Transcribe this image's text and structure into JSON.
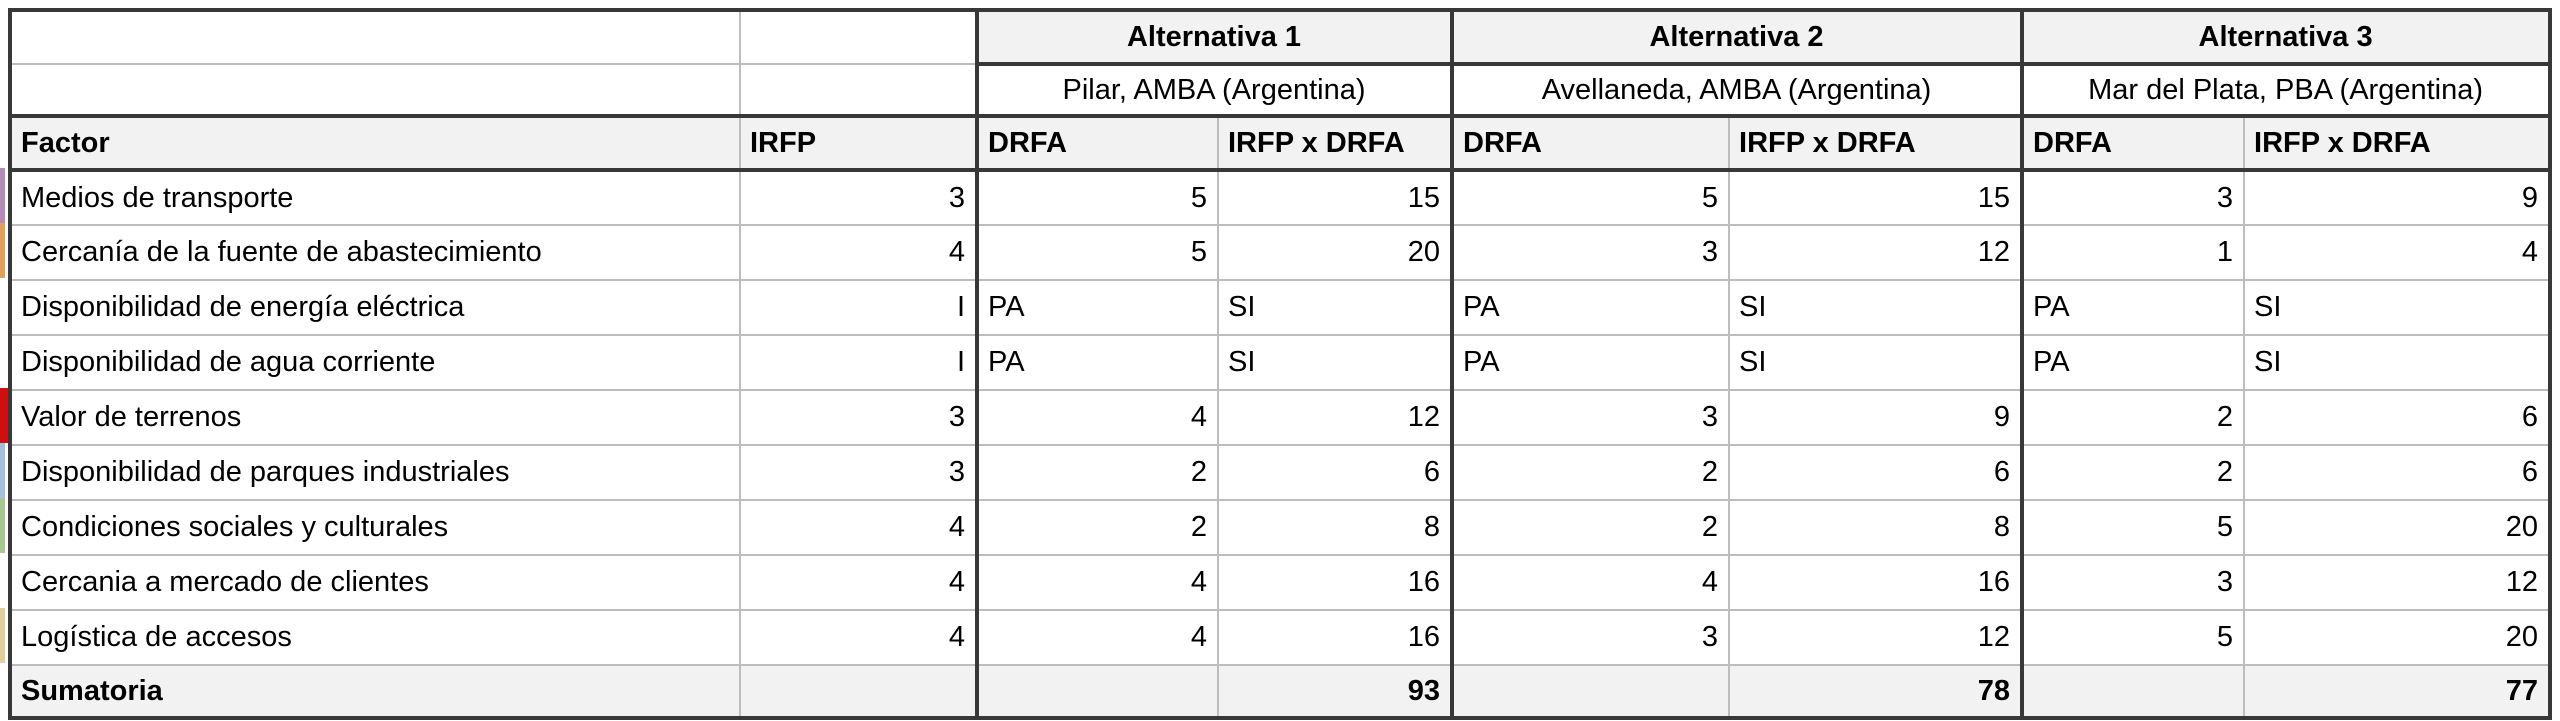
{
  "table": {
    "alternatives": [
      {
        "label": "Alternativa 1",
        "city": "Pilar, AMBA (Argentina)"
      },
      {
        "label": "Alternativa 2",
        "city": "Avellaneda, AMBA (Argentina)"
      },
      {
        "label": "Alternativa 3",
        "city": "Mar del Plata, PBA (Argentina)"
      }
    ],
    "headers": {
      "factor": "Factor",
      "irfp": "IRFP",
      "drfa": "DRFA",
      "irfp_x_drfa": "IRFP x DRFA"
    },
    "rows": [
      {
        "factor": "Medios de transporte",
        "irfp": "3",
        "a1_drfa": "5",
        "a1_total": "15",
        "a2_drfa": "5",
        "a2_total": "15",
        "a3_drfa": "3",
        "a3_total": "9"
      },
      {
        "factor": "Cercanía de la fuente de abastecimiento",
        "irfp": "4",
        "a1_drfa": "5",
        "a1_total": "20",
        "a2_drfa": "3",
        "a2_total": "12",
        "a3_drfa": "1",
        "a3_total": "4"
      },
      {
        "factor": "Disponibilidad de energía eléctrica",
        "irfp": "I",
        "a1_drfa": "PA",
        "a1_total": "SI",
        "a2_drfa": "PA",
        "a2_total": "SI",
        "a3_drfa": "PA",
        "a3_total": "SI"
      },
      {
        "factor": "Disponibilidad de agua corriente",
        "irfp": "I",
        "a1_drfa": "PA",
        "a1_total": "SI",
        "a2_drfa": "PA",
        "a2_total": "SI",
        "a3_drfa": "PA",
        "a3_total": "SI"
      },
      {
        "factor": "Valor de terrenos",
        "irfp": "3",
        "a1_drfa": "4",
        "a1_total": "12",
        "a2_drfa": "3",
        "a2_total": "9",
        "a3_drfa": "2",
        "a3_total": "6"
      },
      {
        "factor": "Disponibilidad de parques industriales",
        "irfp": "3",
        "a1_drfa": "2",
        "a1_total": "6",
        "a2_drfa": "2",
        "a2_total": "6",
        "a3_drfa": "2",
        "a3_total": "6"
      },
      {
        "factor": "Condiciones sociales y culturales",
        "irfp": "4",
        "a1_drfa": "2",
        "a1_total": "8",
        "a2_drfa": "2",
        "a2_total": "8",
        "a3_drfa": "5",
        "a3_total": "20"
      },
      {
        "factor": "Cercania a mercado de clientes",
        "irfp": "4",
        "a1_drfa": "4",
        "a1_total": "16",
        "a2_drfa": "4",
        "a2_total": "16",
        "a3_drfa": "3",
        "a3_total": "12"
      },
      {
        "factor": "Logística de accesos",
        "irfp": "4",
        "a1_drfa": "4",
        "a1_total": "16",
        "a2_drfa": "3",
        "a2_total": "12",
        "a3_drfa": "5",
        "a3_total": "20"
      }
    ],
    "summary": {
      "label": "Sumatoria",
      "a1_total": "93",
      "a2_total": "78",
      "a3_total": "77"
    }
  },
  "edge_markers": [
    {
      "row": 0,
      "color": "#b48bb4",
      "width": 5
    },
    {
      "row": 1,
      "color": "#e2a05c",
      "width": 5
    },
    {
      "row": 4,
      "color": "#cc1010",
      "width": 8
    },
    {
      "row": 5,
      "color": "#a7bedc",
      "width": 5
    },
    {
      "row": 6,
      "color": "#a9c795",
      "width": 5
    },
    {
      "row": 8,
      "color": "#ded09c",
      "width": 5
    }
  ],
  "colors": {
    "header_bg": "#f2f2f2",
    "grid_line": "#bdbdbd",
    "thick_border": "#383838"
  }
}
